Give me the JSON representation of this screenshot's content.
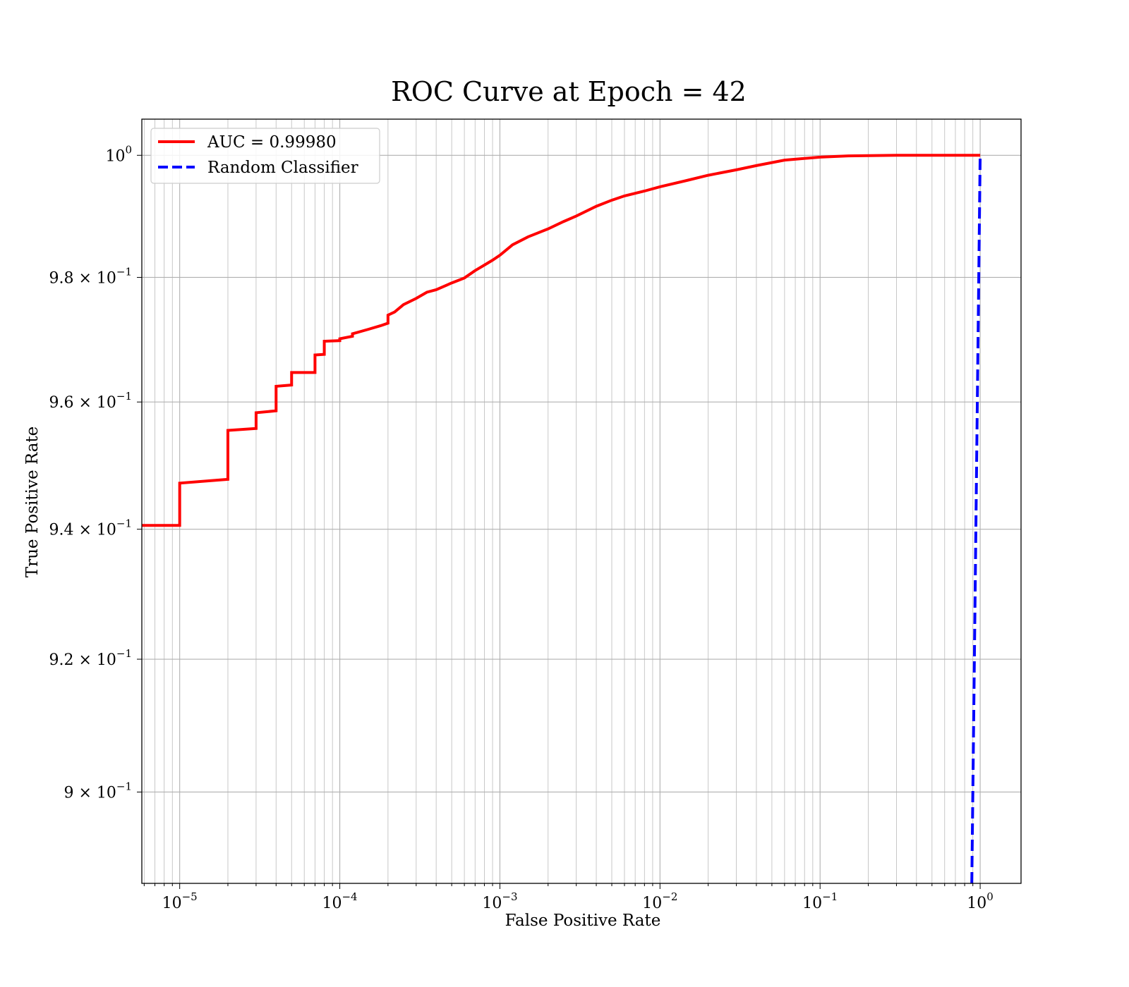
{
  "chart_data": {
    "type": "line",
    "title": "ROC Curve at Epoch = 42",
    "xlabel": "False Positive Rate",
    "ylabel": "True Positive Rate",
    "x_scale": "log",
    "y_scale": "log",
    "xlim": [
      5.8e-06,
      1.8
    ],
    "ylim": [
      0.8865,
      1.006
    ],
    "grid": true,
    "legend_position": "top-left",
    "x_ticks": [
      {
        "base": "10",
        "exp": "−5"
      },
      {
        "base": "10",
        "exp": "−4"
      },
      {
        "base": "10",
        "exp": "−3"
      },
      {
        "base": "10",
        "exp": "−2"
      },
      {
        "base": "10",
        "exp": "−1"
      },
      {
        "base": "10",
        "exp": "0"
      }
    ],
    "y_ticks": [
      {
        "mant": "9",
        "exp": "−1"
      },
      {
        "mant": "9.2",
        "exp": "−1"
      },
      {
        "mant": "9.4",
        "exp": "−1"
      },
      {
        "mant": "9.6",
        "exp": "−1"
      },
      {
        "mant": "9.8",
        "exp": "−1"
      },
      {
        "mant": "",
        "exp": "0"
      }
    ],
    "series": [
      {
        "name": "AUC = 0.99980",
        "color": "#ff0000",
        "style": "solid",
        "x": [
          5.8e-06,
          1e-05,
          1e-05,
          2e-05,
          2e-05,
          3e-05,
          3e-05,
          4e-05,
          4e-05,
          5e-05,
          5e-05,
          7e-05,
          7e-05,
          8e-05,
          8e-05,
          0.0001,
          0.0001,
          0.00012,
          0.00012,
          0.00015,
          0.00018,
          0.0002,
          0.0002,
          0.00022,
          0.00025,
          0.0003,
          0.00035,
          0.0004,
          0.0005,
          0.0006,
          0.0007,
          0.0008,
          0.0009,
          0.001,
          0.0012,
          0.0015,
          0.002,
          0.0025,
          0.003,
          0.004,
          0.005,
          0.006,
          0.008,
          0.01,
          0.015,
          0.02,
          0.03,
          0.04,
          0.06,
          0.1,
          0.15,
          0.3,
          0.6,
          1.0
        ],
        "y": [
          0.9406,
          0.9406,
          0.9472,
          0.9478,
          0.9555,
          0.9558,
          0.9583,
          0.9586,
          0.9625,
          0.9627,
          0.9647,
          0.9647,
          0.9675,
          0.9676,
          0.9697,
          0.9698,
          0.9701,
          0.9705,
          0.9709,
          0.9716,
          0.9722,
          0.9726,
          0.9739,
          0.9744,
          0.9756,
          0.9766,
          0.9776,
          0.978,
          0.9791,
          0.9799,
          0.9811,
          0.982,
          0.9828,
          0.9836,
          0.9853,
          0.9866,
          0.9879,
          0.9891,
          0.99,
          0.9916,
          0.9926,
          0.9933,
          0.9941,
          0.9948,
          0.9959,
          0.9967,
          0.9976,
          0.9983,
          0.9992,
          0.9997,
          0.9999,
          1.0,
          1.0,
          1.0
        ]
      },
      {
        "name": "Random Classifier",
        "color": "#0000ff",
        "style": "dashed",
        "x": [
          0.8865,
          1.0
        ],
        "y": [
          0.8865,
          1.0
        ]
      }
    ]
  }
}
